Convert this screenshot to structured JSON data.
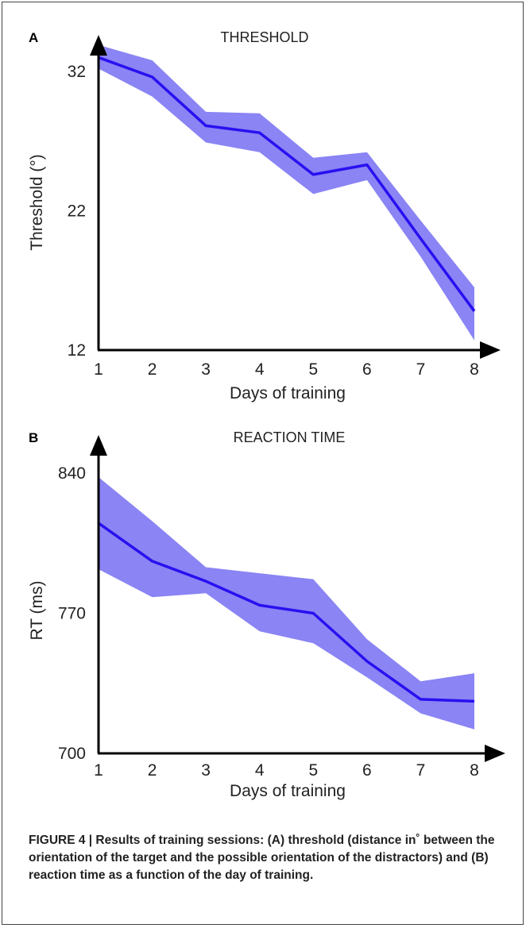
{
  "figure_caption": "FIGURE 4 | Results of training sessions: (A) threshold (distance in˚ between the orientation of the target and the possible orientation of the distractors) and (B) reaction time as a function of the day of training.",
  "colors": {
    "line": "#2a0ff0",
    "band": "#8a84f4",
    "axis": "#000000",
    "text": "#222222"
  },
  "chart_data": [
    {
      "type": "line",
      "panel_label": "A",
      "title": "THRESHOLD",
      "xlabel": "Days of training",
      "ylabel": "Threshold (°)",
      "x": [
        1,
        2,
        3,
        4,
        5,
        6,
        7,
        8
      ],
      "xlim": [
        1,
        8
      ],
      "ylim": [
        12,
        32
      ],
      "yticks": [
        32,
        22,
        12
      ],
      "series": [
        {
          "values": [
            33.0,
            31.6,
            28.1,
            27.6,
            24.6,
            25.3,
            20.0,
            14.8
          ],
          "lower": [
            32.2,
            30.2,
            26.9,
            26.2,
            23.2,
            24.2,
            18.7,
            12.7
          ],
          "upper": [
            33.9,
            32.8,
            29.1,
            29.0,
            25.8,
            26.2,
            21.3,
            16.5
          ]
        }
      ],
      "grid": false
    },
    {
      "type": "line",
      "panel_label": "B",
      "title": "REACTION TIME",
      "xlabel": "Days of training",
      "ylabel": "RT (ms)",
      "x": [
        1,
        2,
        3,
        4,
        5,
        6,
        7,
        8
      ],
      "xlim": [
        1,
        8
      ],
      "ylim": [
        700,
        840
      ],
      "yticks": [
        840,
        770,
        700
      ],
      "series": [
        {
          "values": [
            815,
            796,
            786,
            774,
            770,
            746,
            727,
            726
          ],
          "lower": [
            792,
            778,
            780,
            761,
            755,
            738,
            720,
            712
          ],
          "upper": [
            838,
            816,
            793,
            790,
            787,
            757,
            736,
            740
          ]
        }
      ],
      "grid": false
    }
  ]
}
